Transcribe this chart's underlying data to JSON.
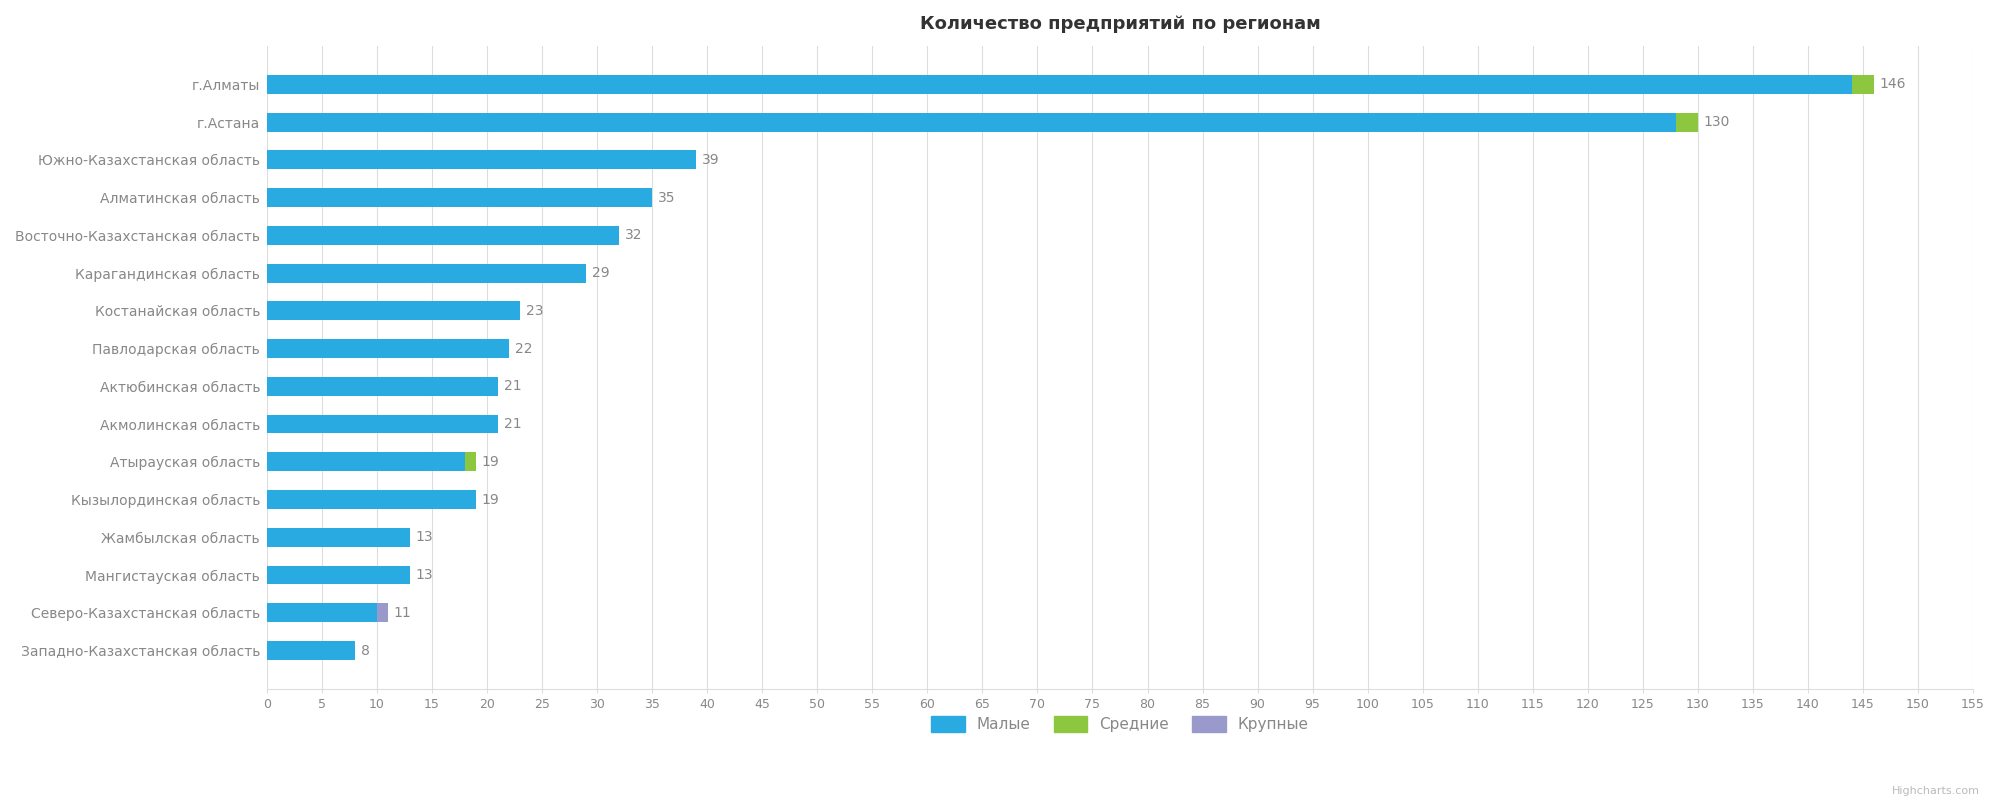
{
  "title": "Количество предприятий по регионам",
  "regions": [
    "г.Алматы",
    "г.Астана",
    "Южно-Казахстанская область",
    "Алматинская область",
    "Восточно-Казахстанская область",
    "Карагандинская область",
    "Костанайская область",
    "Павлодарская область",
    "Актюбинская область",
    "Акмолинская область",
    "Атырауская область",
    "Кызылординская область",
    "Жамбылская область",
    "Мангистауская область",
    "Северо-Казахстанская область",
    "Западно-Казахстанская область"
  ],
  "small": [
    144,
    128,
    39,
    35,
    32,
    29,
    23,
    22,
    21,
    21,
    18,
    19,
    13,
    13,
    10,
    8
  ],
  "medium": [
    2,
    2,
    0,
    0,
    0,
    0,
    0,
    0,
    0,
    0,
    1,
    0,
    0,
    0,
    0,
    0
  ],
  "large": [
    0,
    0,
    0,
    0,
    0,
    0,
    0,
    0,
    0,
    0,
    0,
    0,
    0,
    0,
    1,
    0
  ],
  "totals": [
    146,
    130,
    39,
    35,
    32,
    29,
    23,
    22,
    21,
    21,
    19,
    19,
    13,
    13,
    11,
    8
  ],
  "color_small": "#29ABE2",
  "color_medium": "#8DC63F",
  "color_large": "#9999CC",
  "background_color": "#FFFFFF",
  "grid_color": "#DDDDDD",
  "text_color": "#888888",
  "title_color": "#333333",
  "xlim": [
    0,
    155
  ],
  "xticks": [
    0,
    5,
    10,
    15,
    20,
    25,
    30,
    35,
    40,
    45,
    50,
    55,
    60,
    65,
    70,
    75,
    80,
    85,
    90,
    95,
    100,
    105,
    110,
    115,
    120,
    125,
    130,
    135,
    140,
    145,
    150,
    155
  ],
  "legend_labels": [
    "Малые",
    "Средние",
    "Крупные"
  ]
}
